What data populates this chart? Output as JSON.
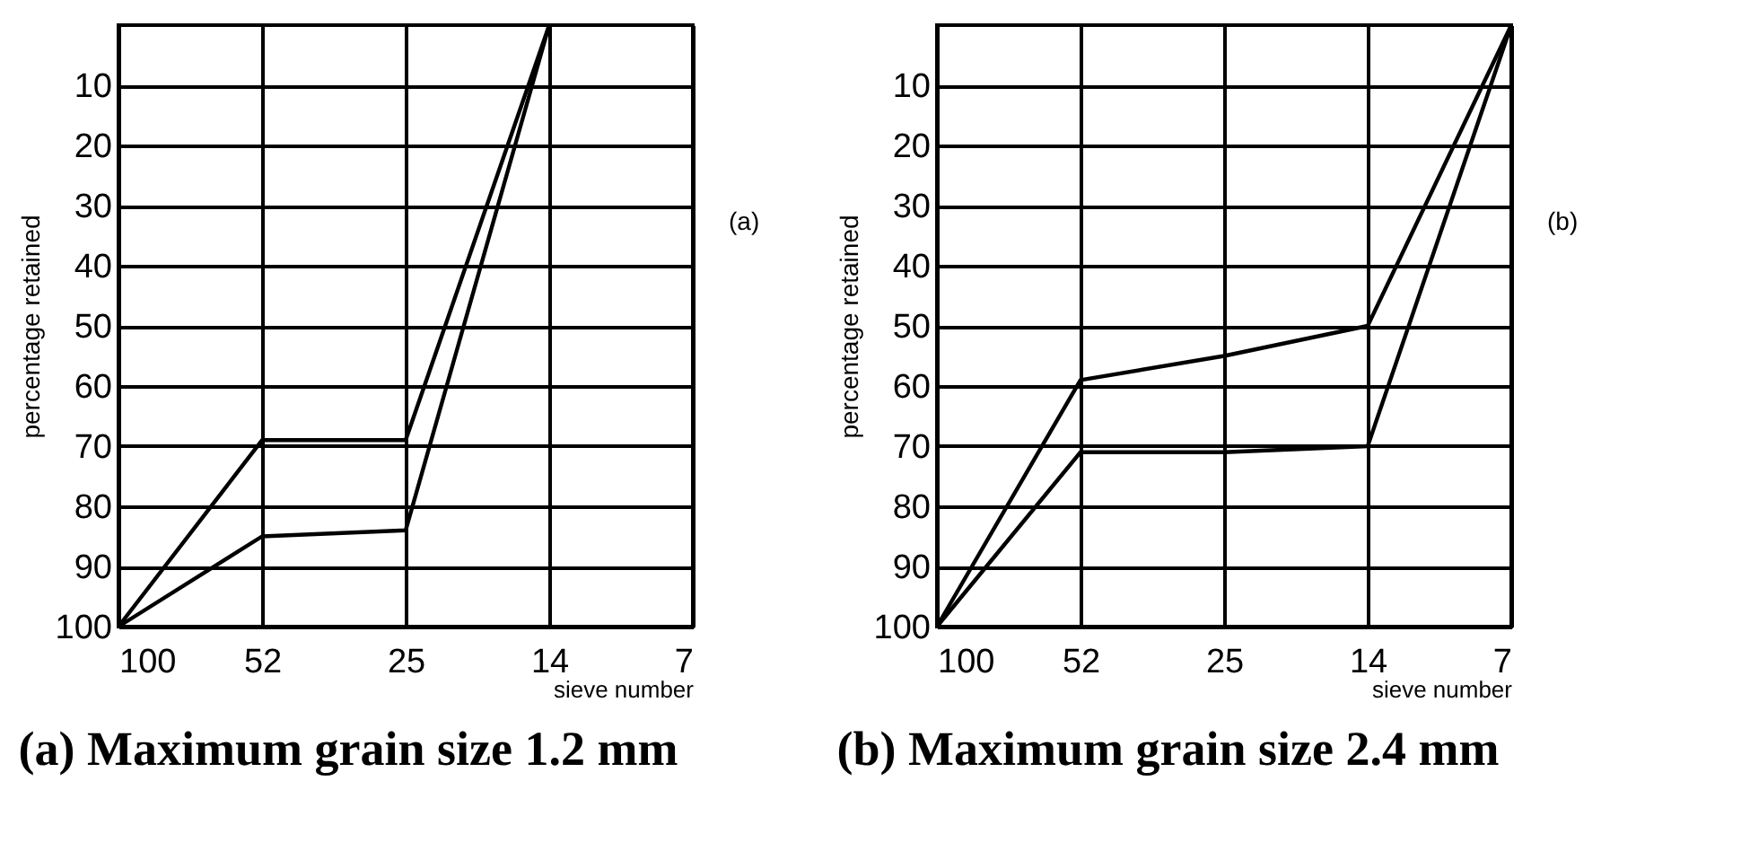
{
  "chart_data": [
    {
      "type": "line",
      "title": "(a) Maximum grain size 1.2 mm",
      "xlabel": "sieve number",
      "ylabel": "percentage retained",
      "annotations": [
        "(a)"
      ],
      "categories": [
        "100",
        "52",
        "25",
        "14",
        "7"
      ],
      "ylim": [
        100,
        0
      ],
      "yticks": [
        10,
        20,
        30,
        40,
        50,
        60,
        70,
        80,
        90,
        100
      ],
      "grid": true,
      "marker": "none",
      "line_style": "solid",
      "series": [
        {
          "color": "#000000",
          "values": [
            100,
            69,
            69,
            0,
            null
          ]
        },
        {
          "color": "#000000",
          "values": [
            100,
            85,
            84,
            0,
            null
          ]
        }
      ]
    },
    {
      "type": "line",
      "title": "(b) Maximum grain size 2.4 mm",
      "xlabel": "sieve number",
      "ylabel": "percentage retained",
      "annotations": [
        "(b)"
      ],
      "categories": [
        "100",
        "52",
        "25",
        "14",
        "7"
      ],
      "ylim": [
        100,
        0
      ],
      "yticks": [
        10,
        20,
        30,
        40,
        50,
        60,
        70,
        80,
        90,
        100
      ],
      "grid": true,
      "marker": "none",
      "line_style": "solid",
      "series": [
        {
          "color": "#000000",
          "values": [
            100,
            59,
            55,
            50,
            0
          ]
        },
        {
          "color": "#000000",
          "values": [
            100,
            71,
            71,
            70,
            0
          ]
        }
      ]
    }
  ]
}
